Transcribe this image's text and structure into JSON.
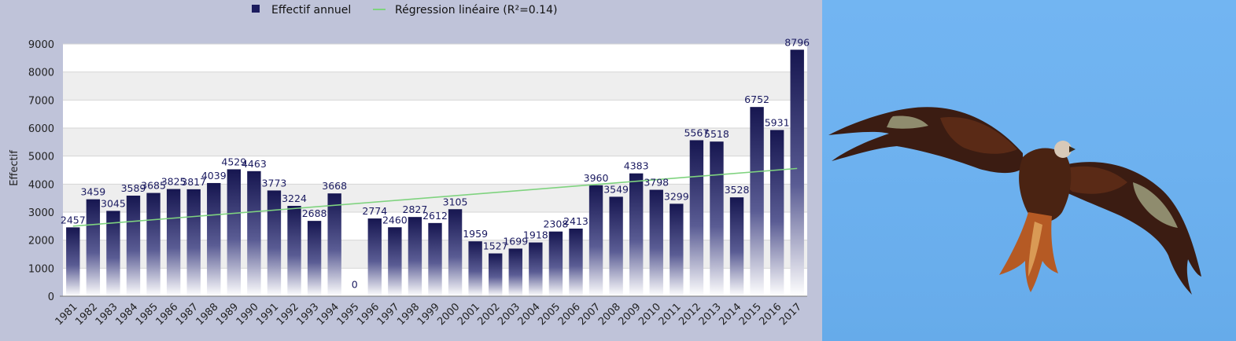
{
  "chart_data": {
    "type": "bar",
    "title": "",
    "xlabel": "",
    "ylabel": "Effectif",
    "ylim": [
      0,
      9000
    ],
    "yticks": [
      "0",
      "1000",
      "2000",
      "3000",
      "4000",
      "5000",
      "6000",
      "7000",
      "8000",
      "9000"
    ],
    "categories": [
      "1981",
      "1982",
      "1983",
      "1984",
      "1985",
      "1986",
      "1987",
      "1988",
      "1989",
      "1990",
      "1991",
      "1992",
      "1993",
      "1994",
      "1995",
      "1996",
      "1997",
      "1998",
      "1999",
      "2000",
      "2001",
      "2002",
      "2003",
      "2004",
      "2005",
      "2006",
      "2007",
      "2008",
      "2009",
      "2010",
      "2011",
      "2012",
      "2013",
      "2014",
      "2015",
      "2016",
      "2017"
    ],
    "series": [
      {
        "name": "Effectif annuel",
        "type": "bar",
        "color": "#1c1c5e",
        "values": [
          2457,
          3459,
          3045,
          3589,
          3685,
          3825,
          3817,
          4039,
          4529,
          4463,
          3773,
          3224,
          2688,
          3668,
          0,
          2774,
          2460,
          2827,
          2612,
          3105,
          1959,
          1527,
          1699,
          1918,
          2308,
          2413,
          3960,
          3549,
          4383,
          3798,
          3299,
          5567,
          5518,
          3528,
          6752,
          5931,
          8796
        ]
      },
      {
        "name": "Régression linéaire (R²=0.14)",
        "type": "line",
        "color": "#7fd37f",
        "start": 2500,
        "end": 4560
      }
    ],
    "legend_position": "top-center",
    "grid": true
  },
  "photo": {
    "subject": "bird-of-prey-in-flight",
    "sky_color": "#6fb2ef"
  }
}
